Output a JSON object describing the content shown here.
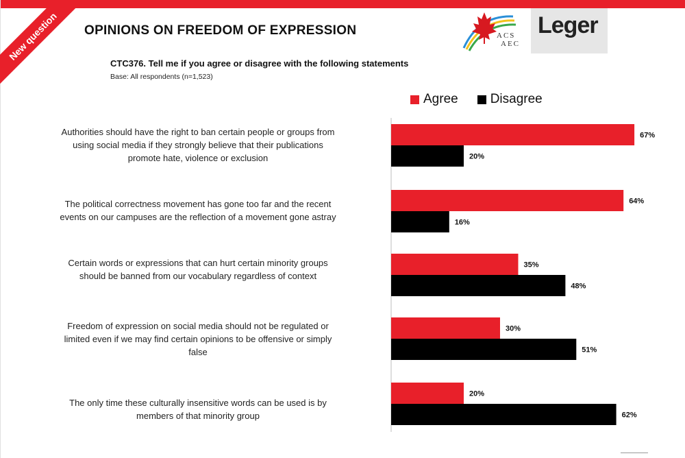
{
  "badge": "New question",
  "header": {
    "title": "OPINIONS ON FREEDOM OF EXPRESSION",
    "question": "CTC376. Tell me if you agree or disagree with the following statements",
    "base": "Base: All respondents (n=1,523)"
  },
  "logos": {
    "acs_line1": "ACS",
    "acs_line2": "AEC",
    "leger": "Leger"
  },
  "colors": {
    "accent": "#e8202a",
    "agree": "#e8202a",
    "disagree": "#000000"
  },
  "chart_data": {
    "type": "bar",
    "orientation": "horizontal",
    "categories": [
      "Authorities should have the right to ban certain people or groups from using social media if they strongly believe that their publications promote hate, violence or exclusion",
      "The political correctness movement has gone too far and the recent events on our campuses are the reflection of a movement gone astray",
      "Certain words or expressions that can hurt certain minority groups should be banned from our vocabulary regardless of context",
      "Freedom of expression on social media should not be regulated or limited even if we may find certain opinions to be offensive or simply false",
      "The only time these culturally insensitive words can be used is by members of that minority group"
    ],
    "category_lines": [
      [
        "Authorities should have the right to ban certain people or groups from",
        "using social media if they strongly believe that their publications",
        "promote hate, violence or exclusion"
      ],
      [
        "The political correctness movement has gone too far and the recent",
        "events on our campuses are the reflection of a movement gone astray"
      ],
      [
        "Certain words or expressions that can hurt certain minority groups",
        "should be banned from our vocabulary regardless of context"
      ],
      [
        "Freedom of expression on social media should not be regulated or",
        "limited even if we may find certain opinions to be offensive or simply",
        "false"
      ],
      [
        "The only time these culturally insensitive words can be used is by",
        "members of that minority group"
      ]
    ],
    "series": [
      {
        "name": "Agree",
        "values": [
          67,
          64,
          35,
          30,
          20
        ],
        "labels": [
          "67%",
          "64%",
          "35%",
          "30%",
          "20%"
        ]
      },
      {
        "name": "Disagree",
        "values": [
          20,
          16,
          48,
          51,
          62
        ],
        "labels": [
          "20%",
          "16%",
          "48%",
          "51%",
          "62%"
        ]
      }
    ],
    "xlim": [
      0,
      70
    ],
    "legend_position": "top",
    "grid": false
  }
}
